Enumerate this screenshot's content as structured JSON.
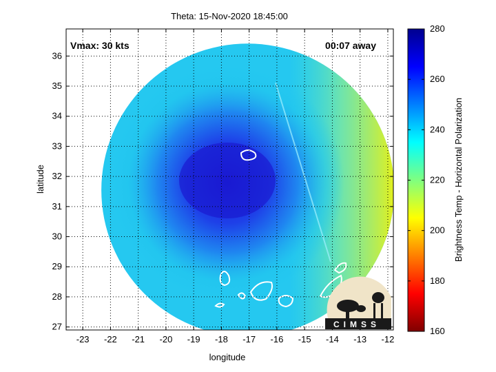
{
  "chart_data": {
    "type": "heatmap",
    "title": "Theta: 15-Nov-2020 18:45:00",
    "xlabel": "longitude",
    "ylabel": "latitude",
    "xlim": [
      -23.6,
      -11.8
    ],
    "ylim": [
      26.9,
      36.9
    ],
    "x_ticks": [
      -23,
      -22,
      -21,
      -20,
      -19,
      -18,
      -17,
      -16,
      -15,
      -14,
      -13,
      -12
    ],
    "y_ticks": [
      27,
      28,
      29,
      30,
      31,
      32,
      33,
      34,
      35,
      36
    ],
    "grid": true,
    "annotations": {
      "vmax": "Vmax: 30 kts",
      "time_away": "00:07 away"
    },
    "swath": {
      "center": [
        -17.05,
        31.55
      ],
      "radius_deg": 9.6
    },
    "cold_core": {
      "center": [
        -17.6,
        32.0
      ],
      "value": 268
    },
    "colorbar": {
      "label": "Brightness Temp - Horizontal Polarization",
      "range": [
        160,
        280
      ],
      "ticks": [
        160,
        180,
        200,
        220,
        240,
        260,
        280
      ],
      "colormap": "jet"
    },
    "logo": "CIMSS"
  }
}
